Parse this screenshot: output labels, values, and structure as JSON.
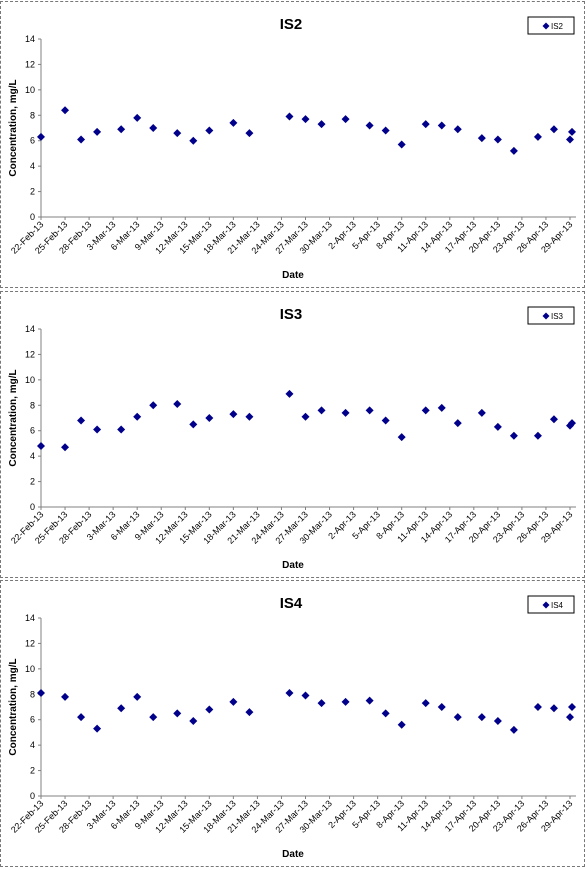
{
  "colors": {
    "marker": "#00008B",
    "axis": "#808080",
    "text": "#000000"
  },
  "chart_data": [
    {
      "type": "scatter",
      "title": "IS2",
      "xlabel": "Date",
      "ylabel": "Concentration, mg/L",
      "ylim": [
        0,
        14
      ],
      "yticks": [
        0,
        2,
        4,
        6,
        8,
        10,
        12,
        14
      ],
      "grid": false,
      "legend_position": "top-right",
      "x_tick_labels": [
        "22-Feb-13",
        "25-Feb-13",
        "28-Feb-13",
        "3-Mar-13",
        "6-Mar-13",
        "9-Mar-13",
        "12-Mar-13",
        "15-Mar-13",
        "18-Mar-13",
        "21-Mar-13",
        "24-Mar-13",
        "27-Mar-13",
        "30-Mar-13",
        "2-Apr-13",
        "5-Apr-13",
        "8-Apr-13",
        "11-Apr-13",
        "14-Apr-13",
        "17-Apr-13",
        "20-Apr-13",
        "23-Apr-13",
        "26-Apr-13",
        "29-Apr-13"
      ],
      "xlim": [
        "2013-02-22",
        "2013-04-29"
      ],
      "series": [
        {
          "name": "IS2",
          "x": [
            "2013-02-22",
            "2013-02-25",
            "2013-02-27",
            "2013-03-01",
            "2013-03-04",
            "2013-03-06",
            "2013-03-08",
            "2013-03-11",
            "2013-03-13",
            "2013-03-15",
            "2013-03-18",
            "2013-03-20",
            "2013-03-25",
            "2013-03-27",
            "2013-03-29",
            "2013-04-01",
            "2013-04-04",
            "2013-04-06",
            "2013-04-08",
            "2013-04-11",
            "2013-04-13",
            "2013-04-15",
            "2013-04-18",
            "2013-04-20",
            "2013-04-22",
            "2013-04-25",
            "2013-04-27",
            "2013-04-29",
            "2013-05-02"
          ],
          "y": [
            6.3,
            8.4,
            6.1,
            6.7,
            6.9,
            7.8,
            7.0,
            6.6,
            6.0,
            6.8,
            7.4,
            6.6,
            7.9,
            7.7,
            7.3,
            7.7,
            7.2,
            6.8,
            5.7,
            7.3,
            7.2,
            6.9,
            6.2,
            6.1,
            5.2,
            6.3,
            6.9,
            6.1,
            6.7
          ]
        }
      ]
    },
    {
      "type": "scatter",
      "title": "IS3",
      "xlabel": "Date",
      "ylabel": "Concentration, mg/L",
      "ylim": [
        0,
        14
      ],
      "yticks": [
        0,
        2,
        4,
        6,
        8,
        10,
        12,
        14
      ],
      "grid": false,
      "legend_position": "top-right",
      "x_tick_labels": [
        "22-Feb-13",
        "25-Feb-13",
        "28-Feb-13",
        "3-Mar-13",
        "6-Mar-13",
        "9-Mar-13",
        "12-Mar-13",
        "15-Mar-13",
        "18-Mar-13",
        "21-Mar-13",
        "24-Mar-13",
        "27-Mar-13",
        "30-Mar-13",
        "2-Apr-13",
        "5-Apr-13",
        "8-Apr-13",
        "11-Apr-13",
        "14-Apr-13",
        "17-Apr-13",
        "20-Apr-13",
        "23-Apr-13",
        "26-Apr-13",
        "29-Apr-13"
      ],
      "xlim": [
        "2013-02-22",
        "2013-04-29"
      ],
      "series": [
        {
          "name": "IS3",
          "x": [
            "2013-02-22",
            "2013-02-25",
            "2013-02-27",
            "2013-03-01",
            "2013-03-04",
            "2013-03-06",
            "2013-03-08",
            "2013-03-11",
            "2013-03-13",
            "2013-03-15",
            "2013-03-18",
            "2013-03-20",
            "2013-03-25",
            "2013-03-27",
            "2013-03-29",
            "2013-04-01",
            "2013-04-04",
            "2013-04-06",
            "2013-04-08",
            "2013-04-11",
            "2013-04-13",
            "2013-04-15",
            "2013-04-18",
            "2013-04-20",
            "2013-04-22",
            "2013-04-25",
            "2013-04-27",
            "2013-04-29",
            "2013-05-02"
          ],
          "y": [
            4.8,
            4.7,
            6.8,
            6.1,
            6.1,
            7.1,
            8.0,
            8.1,
            6.5,
            7.0,
            7.3,
            7.1,
            8.9,
            7.1,
            7.6,
            7.4,
            7.6,
            6.8,
            5.5,
            7.6,
            7.8,
            6.6,
            7.4,
            6.3,
            5.6,
            5.6,
            6.9,
            6.4,
            6.6
          ]
        }
      ]
    },
    {
      "type": "scatter",
      "title": "IS4",
      "xlabel": "Date",
      "ylabel": "Concentration, mg/L",
      "ylim": [
        0,
        14
      ],
      "yticks": [
        0,
        2,
        4,
        6,
        8,
        10,
        12,
        14
      ],
      "grid": false,
      "legend_position": "top-right",
      "x_tick_labels": [
        "22-Feb-13",
        "25-Feb-13",
        "28-Feb-13",
        "3-Mar-13",
        "6-Mar-13",
        "9-Mar-13",
        "12-Mar-13",
        "15-Mar-13",
        "18-Mar-13",
        "21-Mar-13",
        "24-Mar-13",
        "27-Mar-13",
        "30-Mar-13",
        "2-Apr-13",
        "5-Apr-13",
        "8-Apr-13",
        "11-Apr-13",
        "14-Apr-13",
        "17-Apr-13",
        "20-Apr-13",
        "23-Apr-13",
        "26-Apr-13",
        "29-Apr-13"
      ],
      "xlim": [
        "2013-02-22",
        "2013-04-29"
      ],
      "series": [
        {
          "name": "IS4",
          "x": [
            "2013-02-22",
            "2013-02-25",
            "2013-02-27",
            "2013-03-01",
            "2013-03-04",
            "2013-03-06",
            "2013-03-08",
            "2013-03-11",
            "2013-03-13",
            "2013-03-15",
            "2013-03-18",
            "2013-03-20",
            "2013-03-25",
            "2013-03-27",
            "2013-03-29",
            "2013-04-01",
            "2013-04-04",
            "2013-04-06",
            "2013-04-08",
            "2013-04-11",
            "2013-04-13",
            "2013-04-15",
            "2013-04-18",
            "2013-04-20",
            "2013-04-22",
            "2013-04-25",
            "2013-04-27",
            "2013-04-29",
            "2013-05-02"
          ],
          "y": [
            8.1,
            7.8,
            6.2,
            5.3,
            6.9,
            7.8,
            6.2,
            6.5,
            5.9,
            6.8,
            7.4,
            6.6,
            8.1,
            7.9,
            7.3,
            7.4,
            7.5,
            6.5,
            5.6,
            7.3,
            7.0,
            6.2,
            6.2,
            5.9,
            5.2,
            7.0,
            6.9,
            6.2,
            7.0
          ]
        }
      ]
    }
  ]
}
